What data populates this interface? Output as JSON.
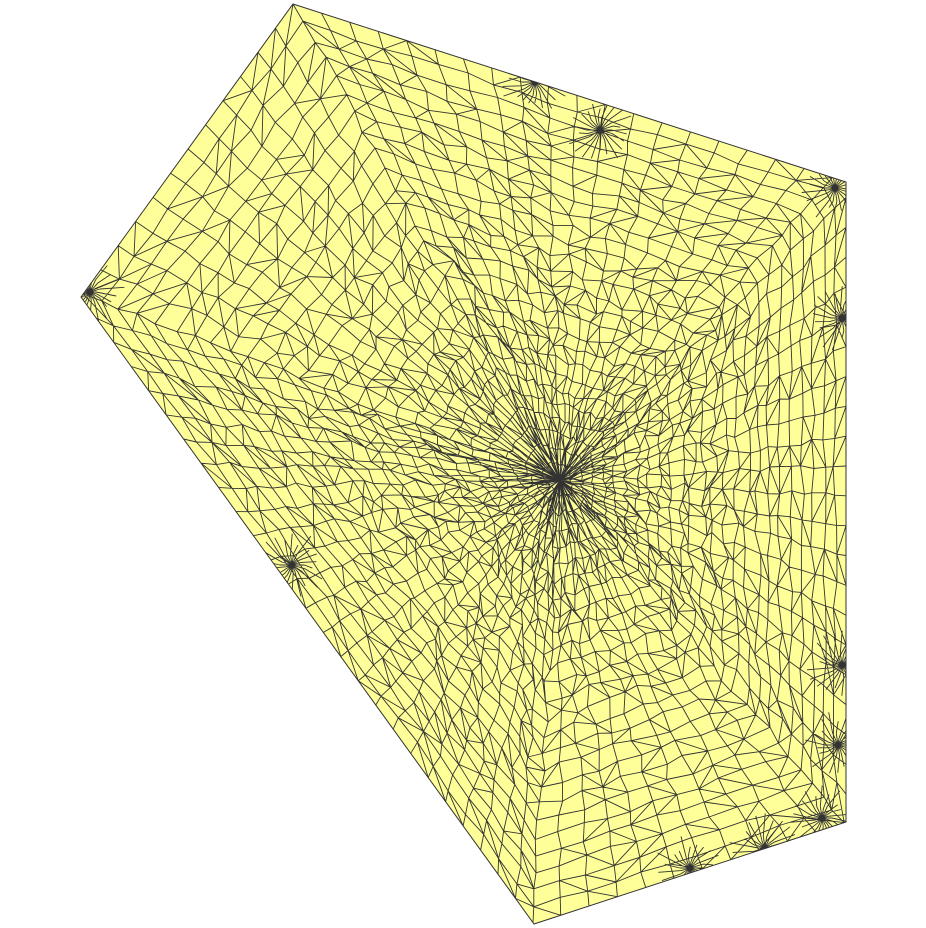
{
  "figure": {
    "kind": "triangulated pentagon mesh",
    "colors": {
      "background": "#ffffff",
      "fill": "#ffff99",
      "edge": "#333333"
    }
  }
}
